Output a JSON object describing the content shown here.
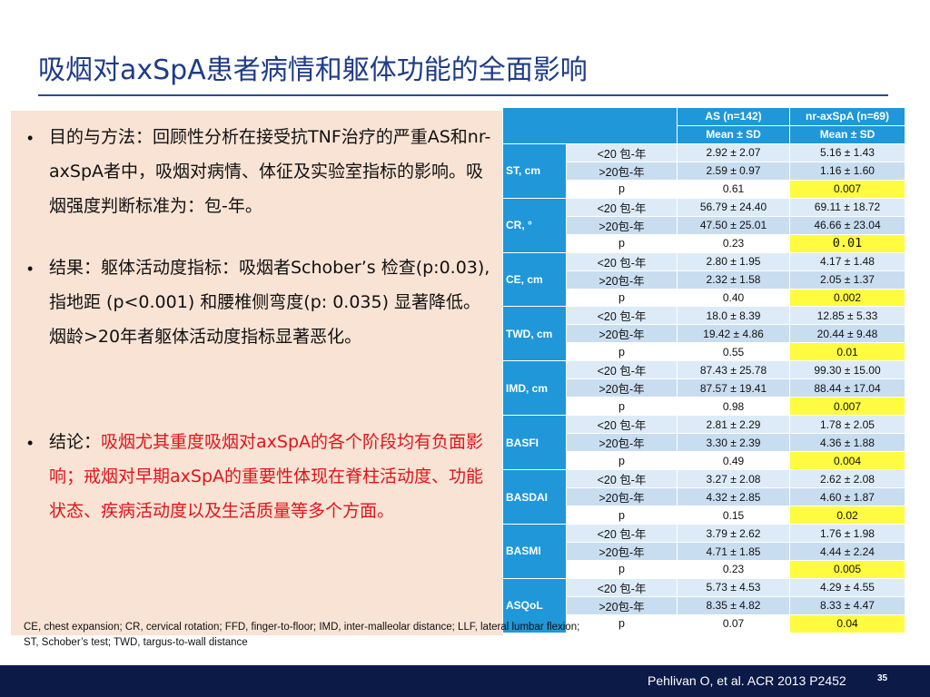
{
  "title": "吸烟对axSpA患者病情和躯体功能的全面影响",
  "bullets": [
    {
      "text": "目的与方法：回顾性分析在接受抗TNF治疗的严重AS和nr-axSpA者中，吸烟对病情、体征及实验室指标的影响。吸烟强度判断标准为：包-年。",
      "highlight": ""
    },
    {
      "text": "结果：躯体活动度指标：吸烟者Schober’s 检查(p:0.03), 指地距 (p<0.001) 和腰椎侧弯度(p: 0.035) 显著降低。烟龄>20年者躯体活动度指标显著恶化。",
      "highlight": ""
    },
    {
      "text": "结论：",
      "highlight": "吸烟尤其重度吸烟对axSpA的各个阶段均有负面影响；戒烟对早期axSpA的重要性体现在脊柱活动度、功能状态、疾病活动度以及生活质量等多个方面。"
    }
  ],
  "footnote": "CE, chest expansion; CR, cervical rotation; FFD, finger-to-floor; IMD, inter-malleolar distance; LLF, lateral lumbar flexion; ST, Schober’s test; TWD, targus-to-wall distance",
  "citation": "Pehlivan O, et al. ACR 2013 P2452",
  "page_number": "35",
  "table": {
    "col_headers": [
      "AS (n=142)",
      "nr-axSpA (n=69)"
    ],
    "stat_headers": [
      "Mean ± SD",
      "Mean ± SD"
    ],
    "groups": [
      {
        "name": "ST, cm",
        "rows": [
          {
            "label": "<20 包-年",
            "as": "2.92 ± 2.07",
            "nr": "5.16 ± 1.43"
          },
          {
            "label": ">20包-年",
            "as": "2.59 ± 0.97",
            "nr": "1.16 ± 1.60"
          },
          {
            "label": "p",
            "as": "0.61",
            "nr": "0.007"
          }
        ]
      },
      {
        "name": "CR, °",
        "rows": [
          {
            "label": "<20 包-年",
            "as": "56.79 ± 24.40",
            "nr": "69.11 ± 18.72"
          },
          {
            "label": ">20包-年",
            "as": "47.50 ± 25.01",
            "nr": "46.66 ± 23.04"
          },
          {
            "label": "p",
            "as": "0.23",
            "nr": "0.01"
          }
        ]
      },
      {
        "name": "CE, cm",
        "rows": [
          {
            "label": "<20 包-年",
            "as": "2.80 ± 1.95",
            "nr": "4.17 ± 1.48"
          },
          {
            "label": ">20包-年",
            "as": "2.32 ± 1.58",
            "nr": "2.05 ± 1.37"
          },
          {
            "label": "p",
            "as": "0.40",
            "nr": "0.002"
          }
        ]
      },
      {
        "name": "TWD, cm",
        "rows": [
          {
            "label": "<20 包-年",
            "as": "18.0 ± 8.39",
            "nr": "12.85 ± 5.33"
          },
          {
            "label": ">20包-年",
            "as": "19.42 ± 4.86",
            "nr": "20.44 ± 9.48"
          },
          {
            "label": "p",
            "as": "0.55",
            "nr": "0.01"
          }
        ]
      },
      {
        "name": "IMD, cm",
        "rows": [
          {
            "label": "<20 包-年",
            "as": "87.43 ± 25.78",
            "nr": "99.30 ± 15.00"
          },
          {
            "label": ">20包-年",
            "as": "87.57 ± 19.41",
            "nr": "88.44 ± 17.04"
          },
          {
            "label": "p",
            "as": "0.98",
            "nr": "0.007"
          }
        ]
      },
      {
        "name": "BASFI",
        "rows": [
          {
            "label": "<20 包-年",
            "as": "2.81 ± 2.29",
            "nr": "1.78 ± 2.05"
          },
          {
            "label": ">20包-年",
            "as": "3.30 ± 2.39",
            "nr": "4.36 ± 1.88"
          },
          {
            "label": "p",
            "as": "0.49",
            "nr": "0.004"
          }
        ]
      },
      {
        "name": "BASDAI",
        "rows": [
          {
            "label": "<20 包-年",
            "as": "3.27 ± 2.08",
            "nr": "2.62 ± 2.08"
          },
          {
            "label": ">20包-年",
            "as": "4.32 ± 2.85",
            "nr": "4.60 ± 1.87"
          },
          {
            "label": "p",
            "as": "0.15",
            "nr": "0.02"
          }
        ]
      },
      {
        "name": "BASMI",
        "rows": [
          {
            "label": "<20 包-年",
            "as": "3.79 ± 2.62",
            "nr": "1.76 ± 1.98"
          },
          {
            "label": ">20包-年",
            "as": "4.71 ± 1.85",
            "nr": "4.44 ± 2.24"
          },
          {
            "label": "p",
            "as": "0.23",
            "nr": "0.005"
          }
        ]
      },
      {
        "name": "ASQoL",
        "rows": [
          {
            "label": "<20 包-年",
            "as": "5.73 ± 4.53",
            "nr": "4.29 ± 4.55"
          },
          {
            "label": ">20包-年",
            "as": "8.35 ± 4.82",
            "nr": "8.33 ± 4.47"
          },
          {
            "label": "p",
            "as": "0.07",
            "nr": "0.04"
          }
        ]
      }
    ]
  },
  "colors": {
    "title": "#1f3c88",
    "table_header": "#1f97d9",
    "highlight_yellow": "#fffb40",
    "panel_bg": "#f8e3d4",
    "conclusion_red": "#e3131b",
    "bottom_bar": "#0b1a47"
  }
}
